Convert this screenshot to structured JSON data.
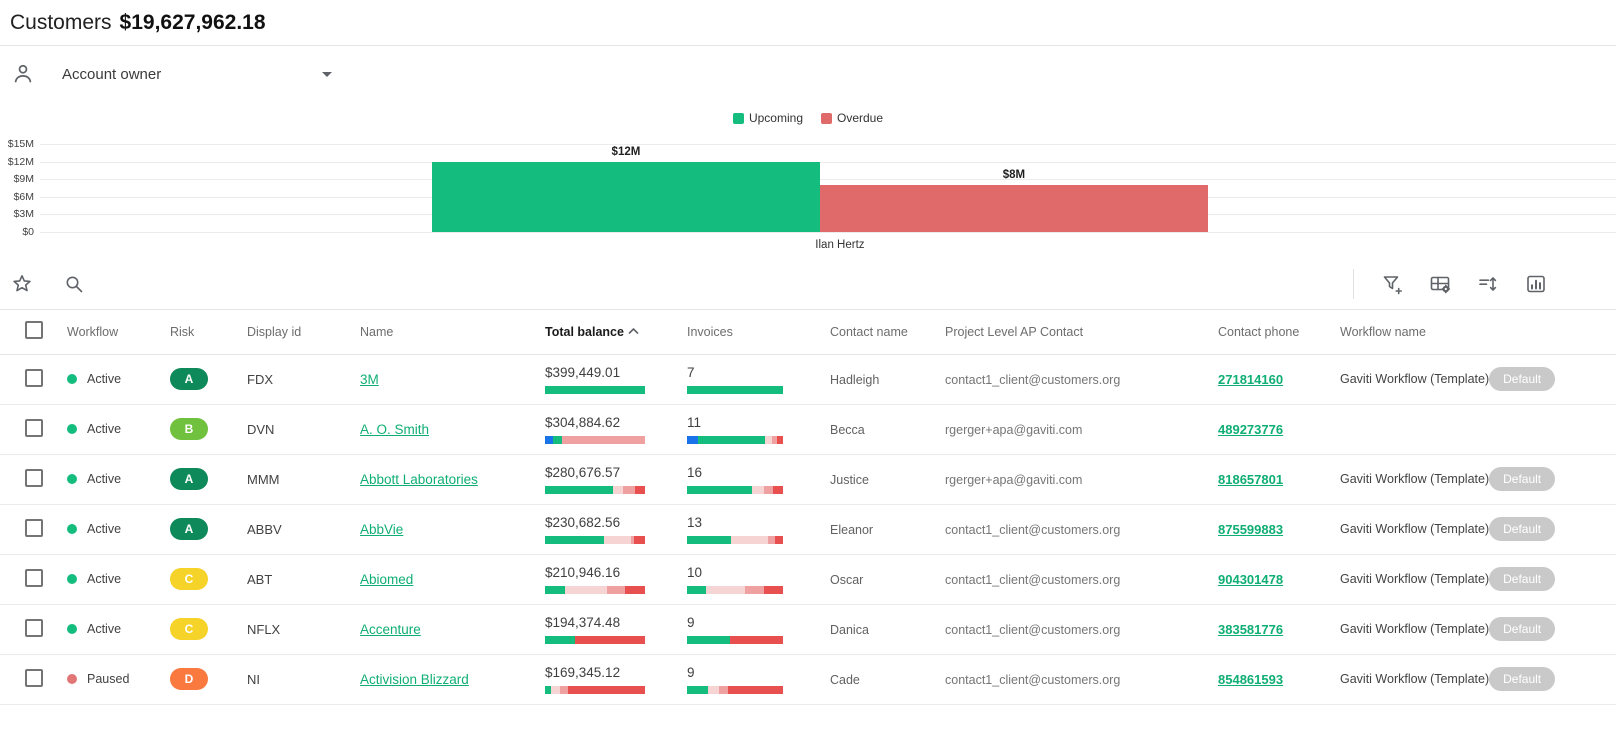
{
  "colors": {
    "green": "#14bd7e",
    "red_bar": "#e06a6a",
    "blue": "#1a73e8",
    "pale_pink": "#f7d4d4",
    "pink": "#efa0a0",
    "bright_red": "#e8504f",
    "risk_a": "#0e8a5a",
    "risk_b": "#6fc13e",
    "risk_c": "#f6d328",
    "risk_d": "#f9793f",
    "paused_dot": "#e07676",
    "link_green": "#0fae74"
  },
  "header": {
    "title": "Customers",
    "total": "$19,627,962.18"
  },
  "filter": {
    "label": "Account owner"
  },
  "chart_data": {
    "type": "bar",
    "categories": [
      "Ilan Hertz"
    ],
    "series": [
      {
        "name": "Upcoming",
        "color_key": "green",
        "values": [
          12000000
        ],
        "labels": [
          "$12M"
        ]
      },
      {
        "name": "Overdue",
        "color_key": "red_bar",
        "values": [
          8000000
        ],
        "labels": [
          "$8M"
        ]
      }
    ],
    "ylim": [
      0,
      15000000
    ],
    "yticks": [
      "$15M",
      "$12M",
      "$9M",
      "$6M",
      "$3M",
      "$0"
    ],
    "xlabel": "",
    "ylabel": "",
    "grid": true,
    "legend_position": "top"
  },
  "toolbar": {
    "left_icons": [
      "favorite-star",
      "search"
    ],
    "right_icons": [
      "filter-add",
      "column-settings",
      "row-height-sort",
      "chart-toggle"
    ]
  },
  "table": {
    "columns": [
      "Workflow",
      "Risk",
      "Display id",
      "Name",
      "Total balance",
      "Invoices",
      "Contact name",
      "Project Level AP Contact",
      "Contact phone",
      "Workflow name"
    ],
    "sort_column": "Total balance",
    "sort_direction": "asc",
    "rows": [
      {
        "workflow": "Active",
        "status_key": "active",
        "risk": "A",
        "risk_color_key": "risk_a",
        "display_id": "FDX",
        "name": "3M",
        "balance": "$399,449.01",
        "balance_bar": [
          [
            "green",
            100
          ]
        ],
        "invoices": "7",
        "invoices_bar": [
          [
            "green",
            100
          ]
        ],
        "contact": "Hadleigh",
        "email": "contact1_client@customers.org",
        "phone": "271814160",
        "workflow_name": "Gaviti Workflow (Template)",
        "badge": "Default"
      },
      {
        "workflow": "Active",
        "status_key": "active",
        "risk": "B",
        "risk_color_key": "risk_b",
        "display_id": "DVN",
        "name": "A. O. Smith",
        "balance": "$304,884.62",
        "balance_bar": [
          [
            "blue",
            8
          ],
          [
            "green",
            9
          ],
          [
            "pink",
            83
          ]
        ],
        "invoices": "11",
        "invoices_bar": [
          [
            "blue",
            11
          ],
          [
            "green",
            70
          ],
          [
            "pale_pink",
            8
          ],
          [
            "pink",
            5
          ],
          [
            "bright_red",
            6
          ]
        ],
        "contact": "Becca",
        "email": "rgerger+apa@gaviti.com",
        "phone": "489273776",
        "workflow_name": "",
        "badge": ""
      },
      {
        "workflow": "Active",
        "status_key": "active",
        "risk": "A",
        "risk_color_key": "risk_a",
        "display_id": "MMM",
        "name": "Abbott Laboratories",
        "balance": "$280,676.57",
        "balance_bar": [
          [
            "green",
            68
          ],
          [
            "pale_pink",
            10
          ],
          [
            "pink",
            12
          ],
          [
            "bright_red",
            10
          ]
        ],
        "invoices": "16",
        "invoices_bar": [
          [
            "green",
            68
          ],
          [
            "pale_pink",
            12
          ],
          [
            "pink",
            10
          ],
          [
            "bright_red",
            10
          ]
        ],
        "contact": "Justice",
        "email": "rgerger+apa@gaviti.com",
        "phone": "818657801",
        "workflow_name": "Gaviti Workflow (Template)",
        "badge": "Default"
      },
      {
        "workflow": "Active",
        "status_key": "active",
        "risk": "A",
        "risk_color_key": "risk_a",
        "display_id": "ABBV",
        "name": "AbbVie",
        "balance": "$230,682.56",
        "balance_bar": [
          [
            "green",
            59
          ],
          [
            "pale_pink",
            27
          ],
          [
            "pink",
            3
          ],
          [
            "bright_red",
            11
          ]
        ],
        "invoices": "13",
        "invoices_bar": [
          [
            "green",
            46
          ],
          [
            "pale_pink",
            38
          ],
          [
            "pink",
            8
          ],
          [
            "bright_red",
            8
          ]
        ],
        "contact": "Eleanor",
        "email": "contact1_client@customers.org",
        "phone": "875599883",
        "workflow_name": "Gaviti Workflow (Template)",
        "badge": "Default"
      },
      {
        "workflow": "Active",
        "status_key": "active",
        "risk": "C",
        "risk_color_key": "risk_c",
        "display_id": "ABT",
        "name": "Abiomed",
        "balance": "$210,946.16",
        "balance_bar": [
          [
            "green",
            20
          ],
          [
            "pale_pink",
            42
          ],
          [
            "pink",
            18
          ],
          [
            "bright_red",
            20
          ]
        ],
        "invoices": "10",
        "invoices_bar": [
          [
            "green",
            20
          ],
          [
            "pale_pink",
            40
          ],
          [
            "pink",
            20
          ],
          [
            "bright_red",
            20
          ]
        ],
        "contact": "Oscar",
        "email": "contact1_client@customers.org",
        "phone": "904301478",
        "workflow_name": "Gaviti Workflow (Template)",
        "badge": "Default"
      },
      {
        "workflow": "Active",
        "status_key": "active",
        "risk": "C",
        "risk_color_key": "risk_c",
        "display_id": "NFLX",
        "name": "Accenture",
        "balance": "$194,374.48",
        "balance_bar": [
          [
            "green",
            30
          ],
          [
            "bright_red",
            70
          ]
        ],
        "invoices": "9",
        "invoices_bar": [
          [
            "green",
            45
          ],
          [
            "bright_red",
            55
          ]
        ],
        "contact": "Danica",
        "email": "contact1_client@customers.org",
        "phone": "383581776",
        "workflow_name": "Gaviti Workflow (Template)",
        "badge": "Default"
      },
      {
        "workflow": "Paused",
        "status_key": "paused",
        "risk": "D",
        "risk_color_key": "risk_d",
        "display_id": "NI",
        "name": "Activision Blizzard",
        "balance": "$169,345.12",
        "balance_bar": [
          [
            "green",
            6
          ],
          [
            "pale_pink",
            9
          ],
          [
            "pink",
            8
          ],
          [
            "bright_red",
            77
          ]
        ],
        "invoices": "9",
        "invoices_bar": [
          [
            "green",
            22
          ],
          [
            "pale_pink",
            11
          ],
          [
            "pink",
            10
          ],
          [
            "bright_red",
            57
          ]
        ],
        "contact": "Cade",
        "email": "contact1_client@customers.org",
        "phone": "854861593",
        "workflow_name": "Gaviti Workflow (Template)",
        "badge": "Default"
      }
    ]
  }
}
